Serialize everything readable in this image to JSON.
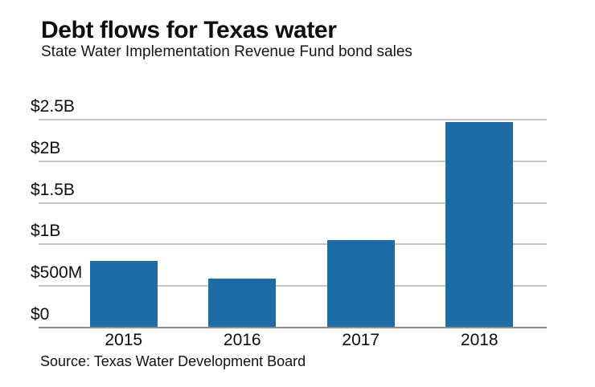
{
  "header": {
    "title": "Debt flows for Texas water",
    "subtitle": "State Water Implementation Revenue Fund bond sales"
  },
  "source_note": "Source: Texas Water Development Board",
  "chart_data": {
    "type": "bar",
    "title": "Debt flows for Texas water",
    "subtitle": "State Water Implementation Revenue Fund bond sales",
    "categories": [
      "2015",
      "2016",
      "2017",
      "2018"
    ],
    "values": [
      800,
      590,
      1050,
      2470
    ],
    "value_unit": "millions of USD",
    "series_name": "State Water Implementation Revenue Fund bond sales",
    "xlabel": "",
    "ylabel": "",
    "ylim": [
      0,
      2500
    ],
    "yticks": [
      {
        "value": 0,
        "label": "$0"
      },
      {
        "value": 500,
        "label": "$500M"
      },
      {
        "value": 1000,
        "label": "$1B"
      },
      {
        "value": 1500,
        "label": "$1.5B"
      },
      {
        "value": 2000,
        "label": "$2B"
      },
      {
        "value": 2500,
        "label": "$2.5B"
      }
    ],
    "grid": true,
    "legend": false,
    "bar_color": "#1e6ca6",
    "gridline_color": "#c5c5c5",
    "baseline_color": "#8e8e8e",
    "text_color": "#0d0d0d",
    "background_color": "#ffffff",
    "source": "Source: Texas Water Development Board"
  }
}
